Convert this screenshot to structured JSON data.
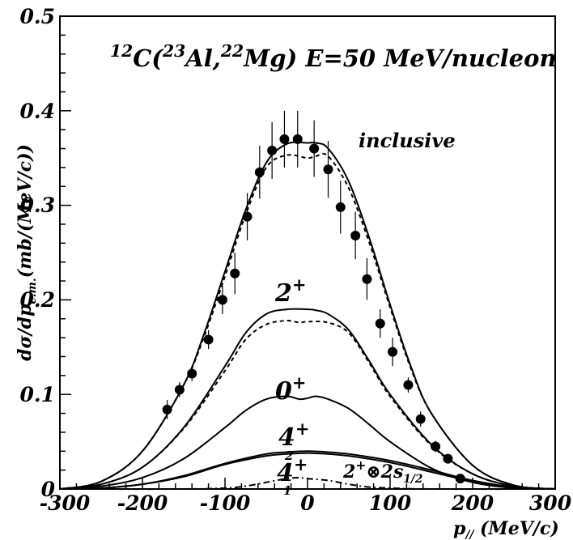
{
  "chart_data": {
    "type": "line",
    "title": {
      "sup1": "12",
      "t1": "C(",
      "sup2": "23",
      "t2": "Al,",
      "sup3": "22",
      "t3": "Mg) E=50 MeV/nucleon"
    },
    "ylabel": {
      "t1": "dσ/dp",
      "sub": "c.m.",
      "t2": "(mb/(MeV/c))"
    },
    "xlabel": {
      "t1": "p",
      "sub": "//",
      "t2": " (MeV/c)"
    },
    "xlim": [
      -300,
      300
    ],
    "ylim": [
      0,
      0.5
    ],
    "xticks": [
      "-300",
      "-200",
      "-100",
      "0",
      "100",
      "200",
      "300"
    ],
    "yticks": [
      "0",
      "0.1",
      "0.2",
      "0.3",
      "0.4",
      "0.5"
    ],
    "grid": false,
    "series": [
      {
        "name": "inclusive",
        "style": "solid",
        "x": [
          -300,
          -250,
          -200,
          -150,
          -125,
          -100,
          -75,
          -50,
          -25,
          0,
          10,
          25,
          50,
          75,
          100,
          125,
          150,
          200,
          250,
          300
        ],
        "y": [
          0.0,
          0.008,
          0.04,
          0.11,
          0.165,
          0.23,
          0.295,
          0.345,
          0.365,
          0.366,
          0.366,
          0.36,
          0.325,
          0.265,
          0.195,
          0.13,
          0.08,
          0.025,
          0.004,
          0.0
        ]
      },
      {
        "name": "",
        "style": "dashed",
        "x": [
          -300,
          -250,
          -200,
          -150,
          -125,
          -100,
          -75,
          -50,
          -25,
          0,
          10,
          25,
          50,
          75,
          100,
          125,
          150,
          200,
          250,
          300
        ],
        "y": [
          0.0,
          0.008,
          0.04,
          0.11,
          0.162,
          0.225,
          0.29,
          0.34,
          0.353,
          0.35,
          0.352,
          0.352,
          0.318,
          0.26,
          0.192,
          0.128,
          0.08,
          0.025,
          0.004,
          0.0
        ]
      },
      {
        "name": "2+",
        "style": "solid",
        "x": [
          -300,
          -250,
          -200,
          -150,
          -100,
          -75,
          -50,
          -25,
          0,
          10,
          25,
          50,
          75,
          100,
          150,
          200,
          250,
          300
        ],
        "y": [
          0.0,
          0.005,
          0.023,
          0.065,
          0.13,
          0.165,
          0.185,
          0.19,
          0.19,
          0.189,
          0.185,
          0.168,
          0.135,
          0.1,
          0.047,
          0.016,
          0.003,
          0.0
        ]
      },
      {
        "name": "",
        "style": "dashed",
        "x": [
          -300,
          -250,
          -200,
          -150,
          -100,
          -75,
          -50,
          -25,
          -10,
          0,
          25,
          50,
          75,
          100,
          150,
          200,
          250,
          300
        ],
        "y": [
          0.0,
          0.005,
          0.023,
          0.064,
          0.125,
          0.158,
          0.174,
          0.178,
          0.176,
          0.177,
          0.176,
          0.165,
          0.133,
          0.098,
          0.046,
          0.016,
          0.003,
          0.0
        ]
      },
      {
        "name": "0+",
        "style": "solid",
        "x": [
          -300,
          -250,
          -200,
          -150,
          -100,
          -75,
          -50,
          -25,
          -10,
          0,
          10,
          25,
          50,
          75,
          100,
          150,
          200,
          250,
          300
        ],
        "y": [
          0.0,
          0.003,
          0.012,
          0.032,
          0.065,
          0.083,
          0.095,
          0.098,
          0.095,
          0.096,
          0.098,
          0.095,
          0.085,
          0.068,
          0.05,
          0.022,
          0.007,
          0.001,
          0.0
        ]
      },
      {
        "name": "4+_2",
        "style": "solid",
        "x": [
          -300,
          -250,
          -200,
          -150,
          -100,
          -50,
          -25,
          0,
          25,
          50,
          100,
          150,
          200,
          250,
          300
        ],
        "y": [
          0.0,
          0.001,
          0.005,
          0.014,
          0.027,
          0.037,
          0.039,
          0.04,
          0.039,
          0.037,
          0.03,
          0.02,
          0.009,
          0.002,
          0.0
        ]
      },
      {
        "name": "4+_1",
        "style": "solid",
        "x": [
          -300,
          -250,
          -200,
          -150,
          -100,
          -50,
          -25,
          0,
          25,
          50,
          100,
          150,
          200,
          250,
          300
        ],
        "y": [
          0.0,
          0.001,
          0.005,
          0.013,
          0.026,
          0.035,
          0.037,
          0.038,
          0.037,
          0.035,
          0.028,
          0.018,
          0.008,
          0.002,
          0.0
        ]
      },
      {
        "name": "2+⊗2s1/2",
        "style": "dashdot",
        "x": [
          -300,
          -150,
          -100,
          -75,
          -50,
          -25,
          -10,
          0,
          25,
          50,
          75,
          100,
          150,
          300
        ],
        "y": [
          0.0,
          0.0,
          0.001,
          0.003,
          0.007,
          0.011,
          0.012,
          0.011,
          0.009,
          0.005,
          0.002,
          0.001,
          0.0,
          0.0
        ]
      }
    ],
    "data_points": {
      "x": [
        -170,
        -155,
        -140,
        -120,
        -103,
        -88,
        -73,
        -58,
        -43,
        -28,
        -12,
        8,
        25,
        40,
        58,
        72,
        88,
        103,
        122,
        137,
        155,
        170,
        185
      ],
      "y": [
        0.084,
        0.105,
        0.122,
        0.158,
        0.2,
        0.228,
        0.288,
        0.335,
        0.358,
        0.37,
        0.37,
        0.36,
        0.338,
        0.298,
        0.268,
        0.222,
        0.175,
        0.145,
        0.11,
        0.074,
        0.045,
        0.032,
        0.011
      ],
      "err": [
        0.01,
        0.008,
        0.008,
        0.01,
        0.015,
        0.022,
        0.025,
        0.028,
        0.03,
        0.03,
        0.03,
        0.03,
        0.03,
        0.028,
        0.025,
        0.022,
        0.015,
        0.015,
        0.008,
        0.008,
        0.006,
        0.005,
        0.004
      ]
    },
    "annotations": {
      "inclusive": "inclusive",
      "two_plus": {
        "base": "2",
        "sup": "+"
      },
      "zero_plus": {
        "base": "0",
        "sup": "+"
      },
      "four_plus_2": {
        "base": "4",
        "sup": "+",
        "sub": "2"
      },
      "four_plus_1": {
        "base": "4",
        "sup": "+",
        "sub": "1"
      },
      "coupling": {
        "base": "2",
        "sup": "+",
        "mid": "⊗2s",
        "sub": "1/2"
      }
    }
  }
}
